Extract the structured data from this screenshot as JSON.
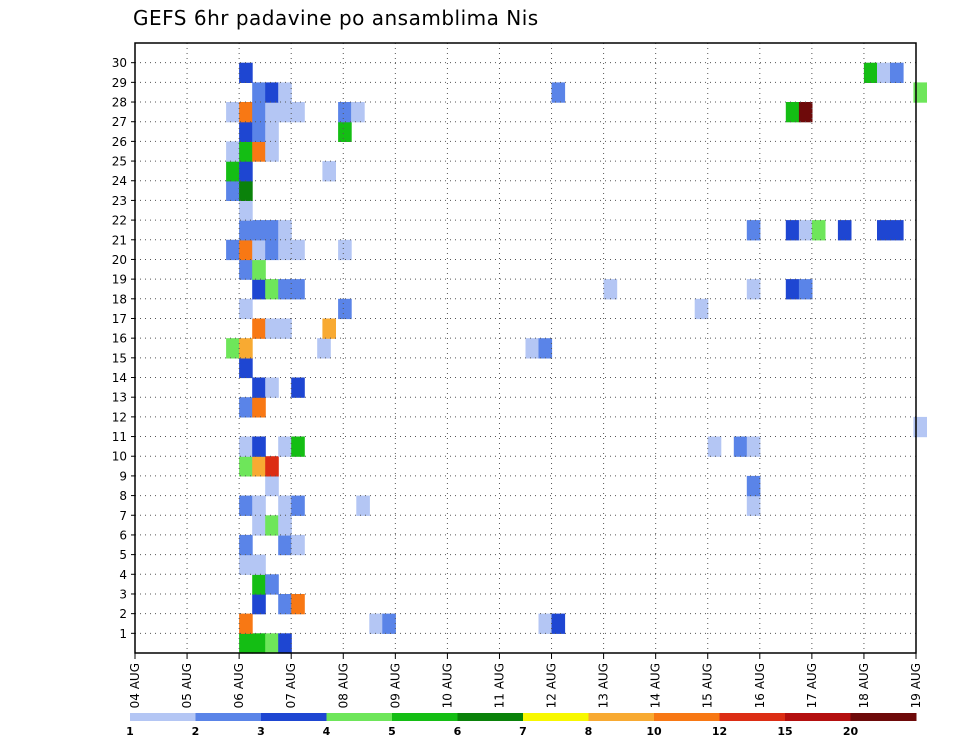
{
  "chart_data": {
    "type": "heatmap",
    "title": "GEFS 6hr padavine po ansamblima Nis",
    "xlabel": "",
    "ylabel": "",
    "x_ticks": [
      "04 AUG",
      "05 AUG",
      "06 AUG",
      "07 AUG",
      "08 AUG",
      "09 AUG",
      "10 AUG",
      "11 AUG",
      "12 AUG",
      "13 AUG",
      "14 AUG",
      "15 AUG",
      "16 AUG",
      "17 AUG",
      "18 AUG",
      "19 AUG"
    ],
    "x_range_days": [
      0,
      15
    ],
    "y_ticks": [
      1,
      2,
      3,
      4,
      5,
      6,
      7,
      8,
      9,
      10,
      11,
      12,
      13,
      14,
      15,
      16,
      17,
      18,
      19,
      20,
      21,
      22,
      23,
      24,
      25,
      26,
      27,
      28,
      29,
      30
    ],
    "y_range": [
      0,
      30
    ],
    "grid": true,
    "colorbar": {
      "labels": [
        "1",
        "2",
        "3",
        "4",
        "5",
        "6",
        "7",
        "8",
        "10",
        "12",
        "15",
        "20"
      ],
      "colors": [
        "#b4c6f4",
        "#5a84e8",
        "#1e46d2",
        "#6ee65a",
        "#14be14",
        "#0a820a",
        "#f8f800",
        "#f8aa32",
        "#f87814",
        "#dc2d14",
        "#b40f0f",
        "#6e0a0a"
      ]
    },
    "cells": [
      {
        "day": 2.0,
        "member": 0,
        "value": 5
      },
      {
        "day": 2.25,
        "member": 0,
        "value": 5
      },
      {
        "day": 2.5,
        "member": 0,
        "value": 4
      },
      {
        "day": 2.75,
        "member": 0,
        "value": 3
      },
      {
        "day": 2.0,
        "member": 1,
        "value": 10
      },
      {
        "day": 4.5,
        "member": 1,
        "value": 1
      },
      {
        "day": 4.75,
        "member": 1,
        "value": 2
      },
      {
        "day": 7.75,
        "member": 1,
        "value": 1
      },
      {
        "day": 8.0,
        "member": 1,
        "value": 3
      },
      {
        "day": 2.25,
        "member": 2,
        "value": 3
      },
      {
        "day": 2.75,
        "member": 2,
        "value": 2
      },
      {
        "day": 3.0,
        "member": 2,
        "value": 10
      },
      {
        "day": 2.25,
        "member": 3,
        "value": 5
      },
      {
        "day": 2.5,
        "member": 3,
        "value": 2
      },
      {
        "day": 2.0,
        "member": 4,
        "value": 1
      },
      {
        "day": 2.25,
        "member": 4,
        "value": 1
      },
      {
        "day": 2.0,
        "member": 5,
        "value": 2
      },
      {
        "day": 2.75,
        "member": 5,
        "value": 2
      },
      {
        "day": 3.0,
        "member": 5,
        "value": 1
      },
      {
        "day": 2.25,
        "member": 6,
        "value": 1
      },
      {
        "day": 2.5,
        "member": 6,
        "value": 4
      },
      {
        "day": 2.75,
        "member": 6,
        "value": 1
      },
      {
        "day": 2.0,
        "member": 7,
        "value": 2
      },
      {
        "day": 2.25,
        "member": 7,
        "value": 1
      },
      {
        "day": 2.75,
        "member": 7,
        "value": 1
      },
      {
        "day": 3.0,
        "member": 7,
        "value": 2
      },
      {
        "day": 4.25,
        "member": 7,
        "value": 1
      },
      {
        "day": 11.75,
        "member": 7,
        "value": 1
      },
      {
        "day": 2.5,
        "member": 8,
        "value": 1
      },
      {
        "day": 11.75,
        "member": 8,
        "value": 2
      },
      {
        "day": 2.0,
        "member": 9,
        "value": 4
      },
      {
        "day": 2.25,
        "member": 9,
        "value": 8
      },
      {
        "day": 2.5,
        "member": 9,
        "value": 12
      },
      {
        "day": 2.0,
        "member": 10,
        "value": 1
      },
      {
        "day": 2.25,
        "member": 10,
        "value": 3
      },
      {
        "day": 2.75,
        "member": 10,
        "value": 1
      },
      {
        "day": 3.0,
        "member": 10,
        "value": 5
      },
      {
        "day": 11.0,
        "member": 10,
        "value": 1
      },
      {
        "day": 11.5,
        "member": 10,
        "value": 2
      },
      {
        "day": 11.75,
        "member": 10,
        "value": 1
      },
      {
        "day": 14.95,
        "member": 11,
        "value": 1
      },
      {
        "day": 2.0,
        "member": 12,
        "value": 2
      },
      {
        "day": 2.25,
        "member": 12,
        "value": 10
      },
      {
        "day": 2.25,
        "member": 13,
        "value": 3
      },
      {
        "day": 2.5,
        "member": 13,
        "value": 1
      },
      {
        "day": 3.0,
        "member": 13,
        "value": 3
      },
      {
        "day": 2.0,
        "member": 14,
        "value": 3
      },
      {
        "day": 1.75,
        "member": 15,
        "value": 4
      },
      {
        "day": 2.0,
        "member": 15,
        "value": 8
      },
      {
        "day": 3.5,
        "member": 15,
        "value": 1
      },
      {
        "day": 7.5,
        "member": 15,
        "value": 1
      },
      {
        "day": 7.75,
        "member": 15,
        "value": 2
      },
      {
        "day": 2.25,
        "member": 16,
        "value": 10
      },
      {
        "day": 2.5,
        "member": 16,
        "value": 1
      },
      {
        "day": 2.75,
        "member": 16,
        "value": 1
      },
      {
        "day": 3.6,
        "member": 16,
        "value": 8
      },
      {
        "day": 2.0,
        "member": 17,
        "value": 1
      },
      {
        "day": 3.9,
        "member": 17,
        "value": 2
      },
      {
        "day": 10.75,
        "member": 17,
        "value": 1
      },
      {
        "day": 2.25,
        "member": 18,
        "value": 3
      },
      {
        "day": 2.5,
        "member": 18,
        "value": 4
      },
      {
        "day": 2.75,
        "member": 18,
        "value": 2
      },
      {
        "day": 3.0,
        "member": 18,
        "value": 2
      },
      {
        "day": 9.0,
        "member": 18,
        "value": 1
      },
      {
        "day": 11.75,
        "member": 18,
        "value": 1
      },
      {
        "day": 12.5,
        "member": 18,
        "value": 3
      },
      {
        "day": 12.75,
        "member": 18,
        "value": 2
      },
      {
        "day": 2.0,
        "member": 19,
        "value": 2
      },
      {
        "day": 2.25,
        "member": 19,
        "value": 4
      },
      {
        "day": 1.75,
        "member": 20,
        "value": 2
      },
      {
        "day": 2.0,
        "member": 20,
        "value": 10
      },
      {
        "day": 2.25,
        "member": 20,
        "value": 1
      },
      {
        "day": 2.5,
        "member": 20,
        "value": 2
      },
      {
        "day": 2.75,
        "member": 20,
        "value": 1
      },
      {
        "day": 3.0,
        "member": 20,
        "value": 1
      },
      {
        "day": 3.9,
        "member": 20,
        "value": 1
      },
      {
        "day": 2.0,
        "member": 21,
        "value": 2
      },
      {
        "day": 2.25,
        "member": 21,
        "value": 2
      },
      {
        "day": 2.5,
        "member": 21,
        "value": 2
      },
      {
        "day": 2.75,
        "member": 21,
        "value": 1
      },
      {
        "day": 11.75,
        "member": 21,
        "value": 2
      },
      {
        "day": 12.5,
        "member": 21,
        "value": 3
      },
      {
        "day": 12.75,
        "member": 21,
        "value": 1
      },
      {
        "day": 13.0,
        "member": 21,
        "value": 4
      },
      {
        "day": 13.5,
        "member": 21,
        "value": 3
      },
      {
        "day": 14.25,
        "member": 21,
        "value": 3
      },
      {
        "day": 14.5,
        "member": 21,
        "value": 3
      },
      {
        "day": 2.0,
        "member": 22,
        "value": 1
      },
      {
        "day": 1.75,
        "member": 23,
        "value": 2
      },
      {
        "day": 2.0,
        "member": 23,
        "value": 6
      },
      {
        "day": 1.75,
        "member": 24,
        "value": 5
      },
      {
        "day": 2.0,
        "member": 24,
        "value": 3
      },
      {
        "day": 3.6,
        "member": 24,
        "value": 1
      },
      {
        "day": 1.75,
        "member": 25,
        "value": 1
      },
      {
        "day": 2.0,
        "member": 25,
        "value": 5
      },
      {
        "day": 2.25,
        "member": 25,
        "value": 10
      },
      {
        "day": 2.5,
        "member": 25,
        "value": 1
      },
      {
        "day": 2.0,
        "member": 26,
        "value": 3
      },
      {
        "day": 2.25,
        "member": 26,
        "value": 2
      },
      {
        "day": 2.5,
        "member": 26,
        "value": 1
      },
      {
        "day": 3.9,
        "member": 26,
        "value": 5
      },
      {
        "day": 1.75,
        "member": 27,
        "value": 1
      },
      {
        "day": 2.0,
        "member": 27,
        "value": 10
      },
      {
        "day": 2.25,
        "member": 27,
        "value": 2
      },
      {
        "day": 2.5,
        "member": 27,
        "value": 1
      },
      {
        "day": 2.75,
        "member": 27,
        "value": 1
      },
      {
        "day": 3.0,
        "member": 27,
        "value": 1
      },
      {
        "day": 3.9,
        "member": 27,
        "value": 2
      },
      {
        "day": 4.15,
        "member": 27,
        "value": 1
      },
      {
        "day": 12.5,
        "member": 27,
        "value": 5
      },
      {
        "day": 12.75,
        "member": 27,
        "value": 20
      },
      {
        "day": 2.25,
        "member": 28,
        "value": 2
      },
      {
        "day": 2.5,
        "member": 28,
        "value": 3
      },
      {
        "day": 2.75,
        "member": 28,
        "value": 1
      },
      {
        "day": 8.0,
        "member": 28,
        "value": 2
      },
      {
        "day": 14.95,
        "member": 28,
        "value": 4
      },
      {
        "day": 2.0,
        "member": 29,
        "value": 3
      },
      {
        "day": 14.0,
        "member": 29,
        "value": 5
      },
      {
        "day": 14.25,
        "member": 29,
        "value": 1
      },
      {
        "day": 14.5,
        "member": 29,
        "value": 2
      }
    ]
  }
}
